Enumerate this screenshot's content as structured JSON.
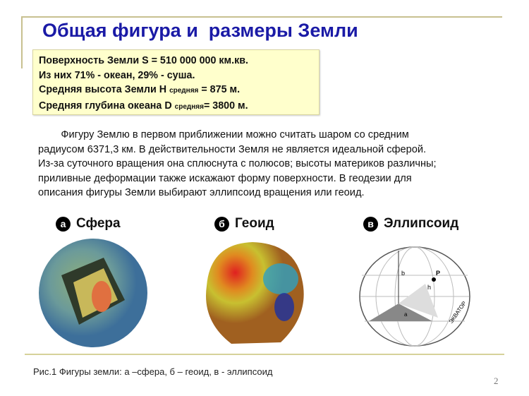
{
  "title": "Общая фигура и  размеры Земли",
  "facts": [
    {
      "text": "Поверхность Земли S = 510 000 000 км.кв."
    },
    {
      "text": "Из них 71% - океан, 29% - суша."
    },
    {
      "pre": "Средняя высота Земли H ",
      "sub": "средняя",
      "post": " = 875 м."
    },
    {
      "pre": "Средняя глубина океана  D ",
      "sub": "средняя",
      "post": "= 3800 м."
    }
  ],
  "paragraph": [
    "        Фигуру Землю в первом приближении можно считать шаром со средним",
    "радиусом 6371,3 км. В действительности Земля не является идеальной сферой.",
    "Из-за суточного вращения она сплюснута с полюсов; высоты материков различны;",
    "приливные деформации также искажают форму поверхности. В геодезии для",
    "описания фигуры Земли выбирают эллипсоид вращения или геоид."
  ],
  "figures": [
    {
      "badge": "а",
      "label": "Сфера"
    },
    {
      "badge": "б",
      "label": "Геоид"
    },
    {
      "badge": "в",
      "label": "Эллипсоид",
      "diagram": {
        "b": "b",
        "h": "h",
        "P": "P",
        "a": "a",
        "equator": "ЭКВАТОР"
      }
    }
  ],
  "caption": "Рис.1 Фигуры земли: а –сфера, б – геоид, в - эллипсоид",
  "page_number": "2",
  "colors": {
    "title": "#1a1aa6",
    "facts_bg": "#ffffcc",
    "rule": "#c8c090"
  }
}
